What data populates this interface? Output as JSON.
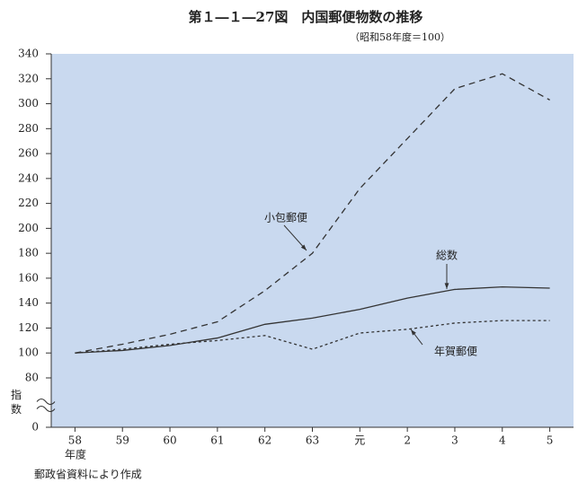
{
  "chart_data": {
    "type": "line",
    "title": "第１―１―27図　内国郵便物数の推移",
    "subtitle": "（昭和58年度＝100）",
    "y_label": "指数",
    "x_label": "年度",
    "source": "郵政省資料により作成",
    "categories": [
      "58",
      "59",
      "60",
      "61",
      "62",
      "63",
      "元",
      "2",
      "3",
      "4",
      "5"
    ],
    "series": [
      {
        "name": "総数",
        "color": "#333333",
        "dash": "none",
        "values": [
          100,
          102,
          106,
          112,
          123,
          128,
          135,
          144,
          151,
          153,
          152
        ]
      },
      {
        "name": "小包郵便",
        "color": "#333333",
        "dash": "7 5",
        "values": [
          100,
          107,
          115,
          125,
          150,
          180,
          232,
          272,
          312,
          324,
          303
        ]
      },
      {
        "name": "年賀郵便",
        "color": "#333333",
        "dash": "3 3",
        "values": [
          100,
          103,
          107,
          110,
          114,
          103,
          116,
          119,
          124,
          126,
          126
        ]
      }
    ],
    "ylim": [
      0,
      340
    ],
    "axis_break": [
      0,
      80
    ],
    "yticks": [
      0,
      80,
      100,
      120,
      140,
      160,
      180,
      200,
      220,
      240,
      260,
      280,
      300,
      320,
      340
    ],
    "background": "#c9d9ef"
  }
}
